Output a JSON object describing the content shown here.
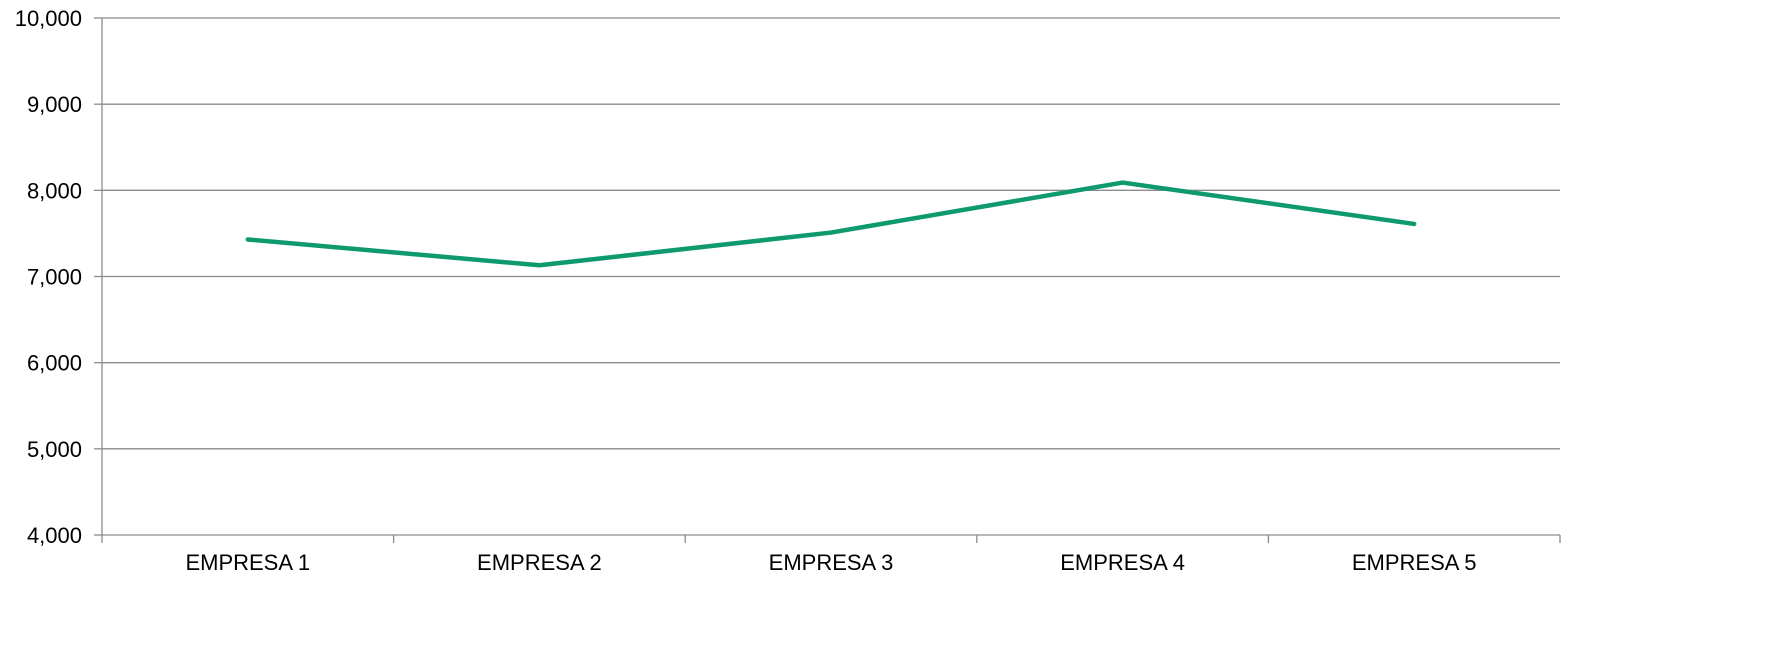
{
  "chart_data": {
    "type": "line",
    "title": "",
    "xlabel": "",
    "ylabel": "",
    "categories": [
      "EMPRESA 1",
      "EMPRESA 2",
      "EMPRESA 3",
      "EMPRESA 4",
      "EMPRESA 5"
    ],
    "series": [
      {
        "values": [
          7430,
          7130,
          7510,
          8090,
          7610
        ],
        "color": "#0e9a6e"
      }
    ],
    "ylim": [
      4000,
      10000
    ],
    "yticks": [
      4000,
      5000,
      6000,
      7000,
      8000,
      9000,
      10000
    ],
    "ytick_labels": [
      "4,000",
      "5,000",
      "6,000",
      "7,000",
      "8,000",
      "9,000",
      "10,000"
    ],
    "grid": true,
    "legend": "none"
  }
}
